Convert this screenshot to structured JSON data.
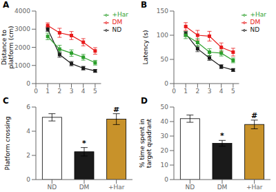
{
  "chart_data": [
    {
      "type": "line",
      "title": "A",
      "ylabel": "Distance to\nplatform (cm)",
      "x": [
        1,
        2,
        3,
        4,
        5
      ],
      "series": [
        {
          "name": "ND",
          "color": "#1a1a1a",
          "marker": "square",
          "values": [
            3000,
            1600,
            1100,
            850,
            700
          ],
          "errors": [
            120,
            150,
            120,
            100,
            80
          ]
        },
        {
          "name": "DM",
          "color": "#e8191a",
          "marker": "square",
          "values": [
            3200,
            2800,
            2650,
            2280,
            1800
          ],
          "errors": [
            150,
            250,
            220,
            200,
            180
          ]
        },
        {
          "name": "+Har",
          "color": "#2ca02c",
          "marker": "square",
          "values": [
            2600,
            1900,
            1680,
            1450,
            1150
          ],
          "errors": [
            180,
            210,
            180,
            160,
            130
          ]
        }
      ],
      "xlim": [
        0,
        5.5
      ],
      "xticks": [
        0,
        1,
        2,
        3,
        4,
        5
      ],
      "ylim": [
        0,
        4000
      ],
      "yticks": [
        0,
        1000,
        2000,
        3000,
        4000
      ],
      "legend": "right"
    },
    {
      "type": "line",
      "title": "B",
      "ylabel": "Latency (s)",
      "x": [
        1,
        2,
        3,
        4,
        5
      ],
      "series": [
        {
          "name": "ND",
          "color": "#1a1a1a",
          "marker": "square",
          "values": [
            103,
            72,
            53,
            35,
            28
          ],
          "errors": [
            5,
            6,
            5,
            4,
            3
          ]
        },
        {
          "name": "DM",
          "color": "#e8191a",
          "marker": "square",
          "values": [
            118,
            100,
            98,
            75,
            65
          ],
          "errors": [
            8,
            10,
            10,
            9,
            8
          ]
        },
        {
          "name": "+Har",
          "color": "#2ca02c",
          "marker": "square",
          "values": [
            100,
            85,
            65,
            63,
            48
          ],
          "errors": [
            7,
            8,
            7,
            6,
            5
          ]
        }
      ],
      "xlim": [
        0,
        5.5
      ],
      "xticks": [
        0,
        1,
        2,
        3,
        4,
        5
      ],
      "ylim": [
        0,
        150
      ],
      "yticks": [
        0,
        50,
        100,
        150
      ],
      "legend": "right"
    },
    {
      "type": "bar",
      "title": "C",
      "ylabel": "Platform crossing",
      "categories": [
        "ND",
        "DM",
        "+Har"
      ],
      "values": [
        5.15,
        2.3,
        5.0
      ],
      "errors": [
        0.3,
        0.35,
        0.45
      ],
      "colors": [
        "#ffffff",
        "#1a1a1a",
        "#c8922a"
      ],
      "ylim": [
        0,
        6
      ],
      "yticks": [
        0,
        2,
        4,
        6
      ],
      "annotations": [
        {
          "category": "DM",
          "text": "*"
        },
        {
          "category": "+Har",
          "text": "#"
        }
      ]
    },
    {
      "type": "bar",
      "title": "D",
      "ylabel": "% time spent in\ntarget quadrant",
      "categories": [
        "ND",
        "DM",
        "+Har"
      ],
      "values": [
        42,
        25,
        38
      ],
      "errors": [
        2.5,
        2.0,
        3.0
      ],
      "colors": [
        "#ffffff",
        "#1a1a1a",
        "#c8922a"
      ],
      "ylim": [
        0,
        50
      ],
      "yticks": [
        0,
        10,
        20,
        30,
        40,
        50
      ],
      "annotations": [
        {
          "category": "DM",
          "text": "*"
        },
        {
          "category": "+Har",
          "text": "#"
        }
      ]
    }
  ]
}
